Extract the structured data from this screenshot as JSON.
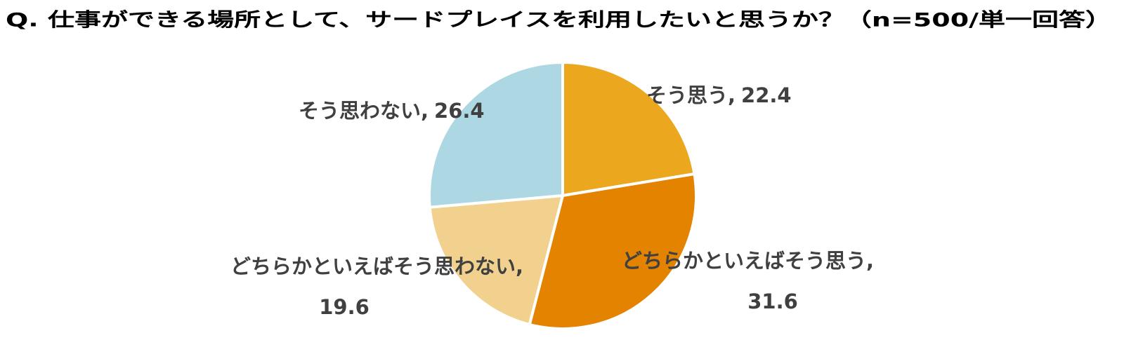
{
  "chart_data": {
    "type": "pie",
    "title": "Q. 仕事ができる場所として、サードプレイスを利用したいと思うか？（n=500/単一回答）",
    "categories": [
      "そう思う,",
      "どちらかといえばそう思う,",
      "どちらかといえばそう思わない,",
      "そう思わない,"
    ],
    "values": [
      22.4,
      31.6,
      19.6,
      26.4
    ],
    "colors": [
      "#eba71e",
      "#e38300",
      "#f2d18e",
      "#add8e3"
    ]
  }
}
